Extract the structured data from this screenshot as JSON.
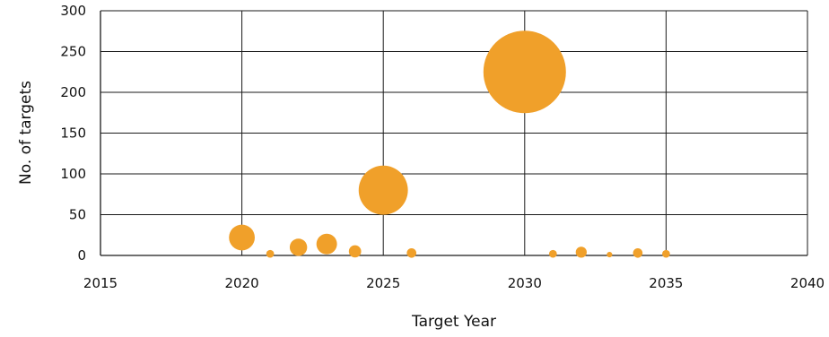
{
  "chart_data": {
    "type": "scatter",
    "subtype": "bubble",
    "title": "",
    "xlabel": "Target Year",
    "ylabel": "No. of targets",
    "xlim": [
      2015,
      2040
    ],
    "ylim": [
      0,
      300
    ],
    "x_ticks": [
      2015,
      2020,
      2025,
      2030,
      2035,
      2040
    ],
    "y_ticks": [
      0,
      50,
      100,
      150,
      200,
      250,
      300
    ],
    "grid": true,
    "legend": "none",
    "bubble_color": "#F0A02A",
    "points": [
      {
        "x": 2020,
        "y": 22
      },
      {
        "x": 2021,
        "y": 2
      },
      {
        "x": 2022,
        "y": 10
      },
      {
        "x": 2023,
        "y": 14
      },
      {
        "x": 2024,
        "y": 5
      },
      {
        "x": 2025,
        "y": 80
      },
      {
        "x": 2026,
        "y": 3
      },
      {
        "x": 2030,
        "y": 225
      },
      {
        "x": 2031,
        "y": 2
      },
      {
        "x": 2032,
        "y": 4
      },
      {
        "x": 2033,
        "y": 1
      },
      {
        "x": 2034,
        "y": 3
      },
      {
        "x": 2035,
        "y": 2
      }
    ]
  }
}
